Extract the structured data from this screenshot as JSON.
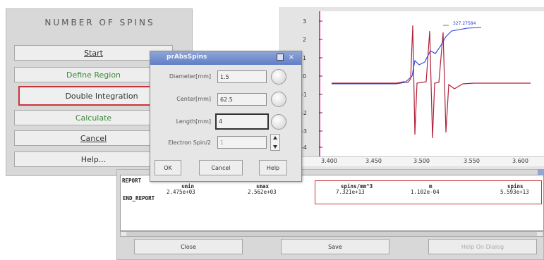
{
  "panel": {
    "title": "NUMBER OF SPINS",
    "buttons": {
      "start": "Start",
      "define_region": "Define Region",
      "double_integration": "Double Integration",
      "calculate": "Calculate",
      "cancel": "Cancel",
      "help": "Help..."
    }
  },
  "dialog": {
    "title": "prAbsSpins",
    "fields": {
      "diameter_label": "Diameter[mm]",
      "diameter_value": "1.5",
      "center_label": "Center[mm]",
      "center_value": "62.5",
      "length_label": "Length[mm]",
      "length_value": "4",
      "spin_label": "Electron Spin/2",
      "spin_value": "1"
    },
    "buttons": {
      "ok": "OK",
      "cancel": "Cancel",
      "help": "Help"
    }
  },
  "plot": {
    "y_ticks": [
      "3",
      "2",
      "1",
      "0",
      "-1",
      "-2",
      "-3",
      "-4"
    ],
    "x_ticks": [
      "3.400",
      "3.450",
      "3.500",
      "3.550",
      "3.600"
    ],
    "annotation": "327.27584",
    "colors": {
      "signal": "#b0223a",
      "integral": "#2c3fd8",
      "axis": "#ee3fa6"
    }
  },
  "report": {
    "line1": "REPORT",
    "col1_header": "smin",
    "col1_value": "2.475e+03",
    "col2_header": "smax",
    "col2_value": "2.562e+03",
    "col3_header": "spins/mm^3",
    "col3_value": "7.321e+13",
    "col4_header": "m",
    "col4_value": "1.102e-04",
    "col5_header": "spins",
    "col5_value": "5.593e+13",
    "line_end": "END_REPORT",
    "buttons": {
      "close": "Close",
      "save": "Save",
      "help_on_dialog": "Help On Dialog"
    }
  }
}
